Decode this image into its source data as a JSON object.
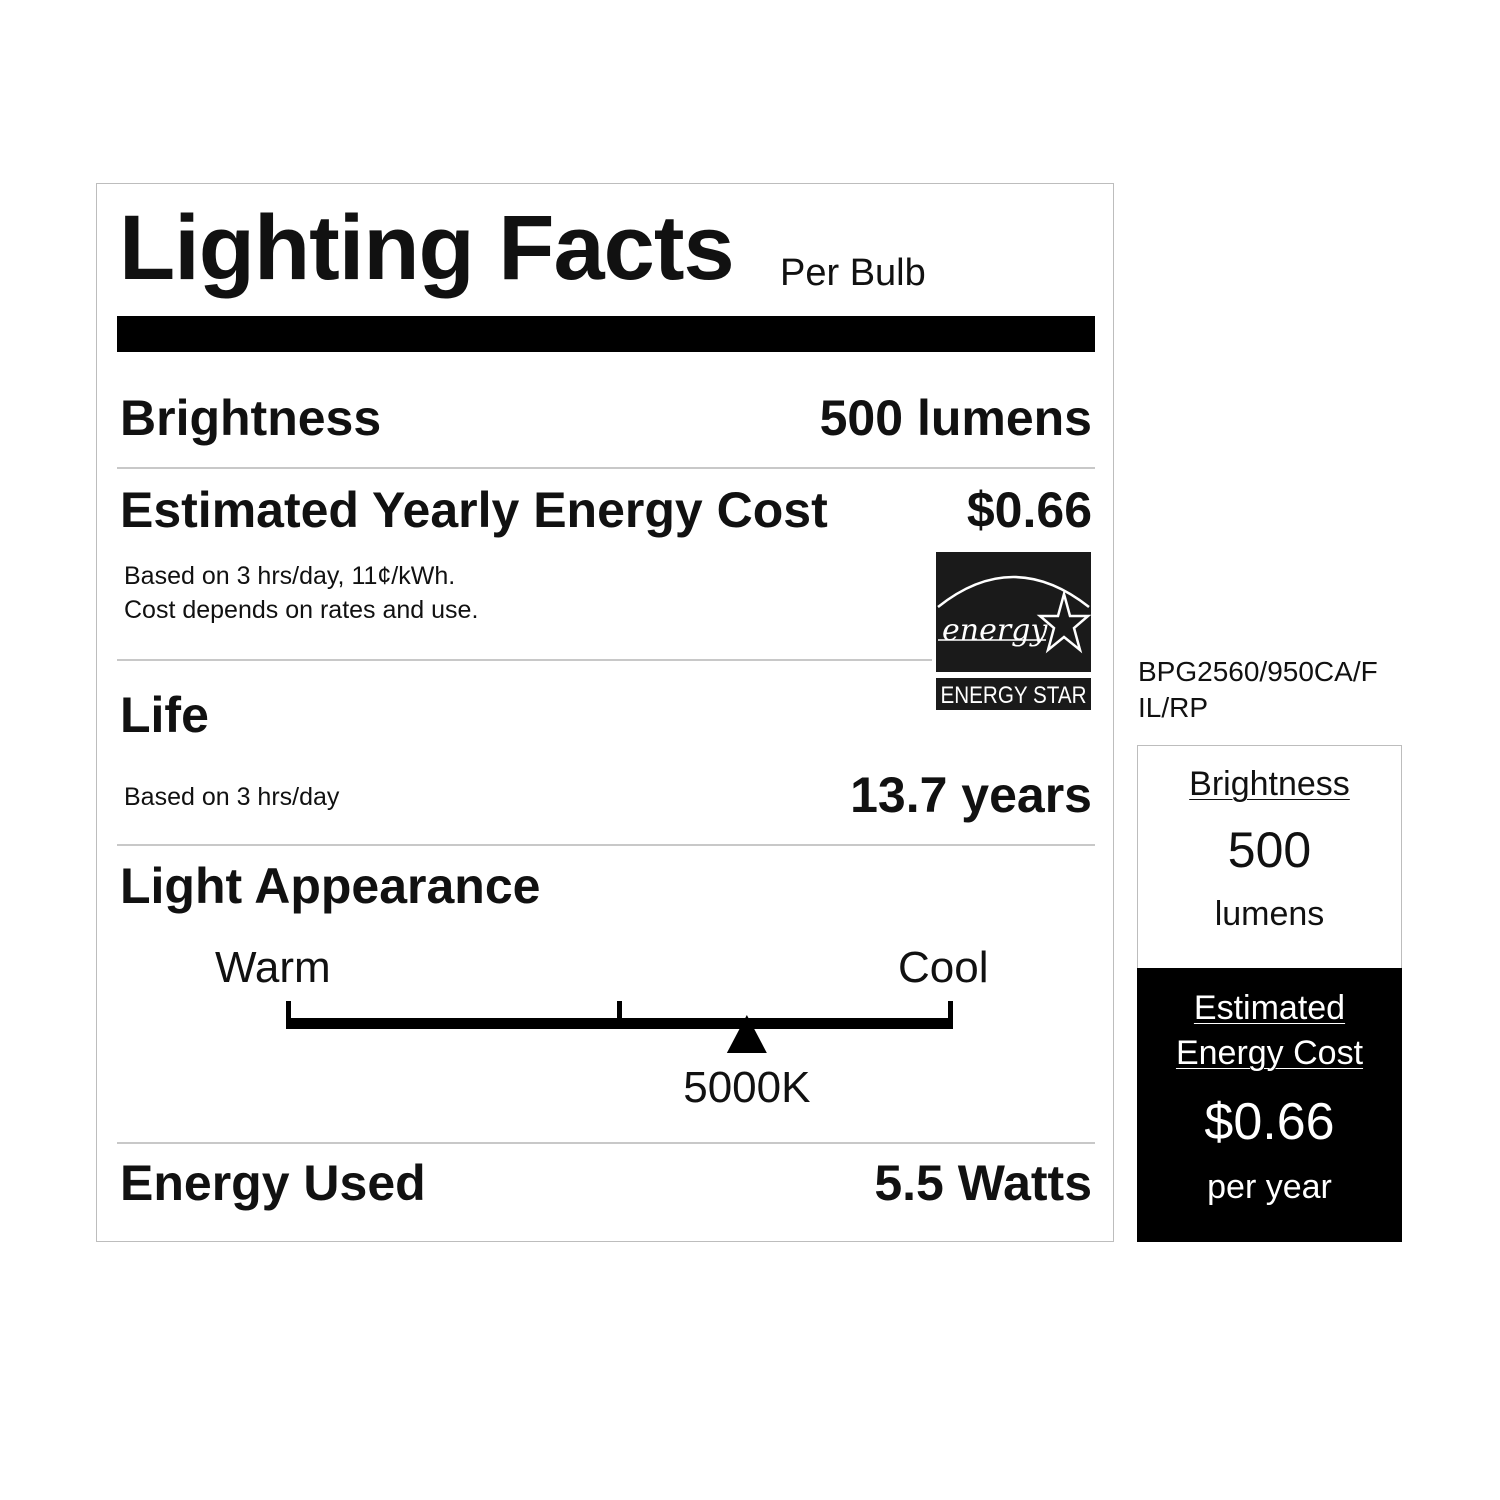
{
  "label": {
    "title": "Lighting Facts",
    "subtitle": "Per Bulb",
    "brightness": {
      "label": "Brightness",
      "value": "500 lumens"
    },
    "energy_cost": {
      "label": "Estimated Yearly Energy Cost",
      "value": "$0.66",
      "note_line1": "Based on 3 hrs/day, 11¢/kWh.",
      "note_line2": "Cost depends on rates and use."
    },
    "energy_star": {
      "script_text": "energy",
      "caption": "ENERGY STAR"
    },
    "life": {
      "label": "Life",
      "note": "Based on 3 hrs/day",
      "value": "13.7 years"
    },
    "light_appearance": {
      "label": "Light Appearance",
      "warm_label": "Warm",
      "cool_label": "Cool",
      "marker_label": "5000K",
      "marker_fraction": 0.69
    },
    "energy_used": {
      "label": "Energy Used",
      "value": "5.5 Watts"
    }
  },
  "side": {
    "model_line1": "BPG2560/950CA/F",
    "model_line2": "IL/RP",
    "brightness_label": "Brightness",
    "brightness_value": "500",
    "brightness_unit": "lumens",
    "cost_label_line1": "Estimated",
    "cost_label_line2": "Energy Cost",
    "cost_value": "$0.66",
    "cost_period": "per year"
  }
}
